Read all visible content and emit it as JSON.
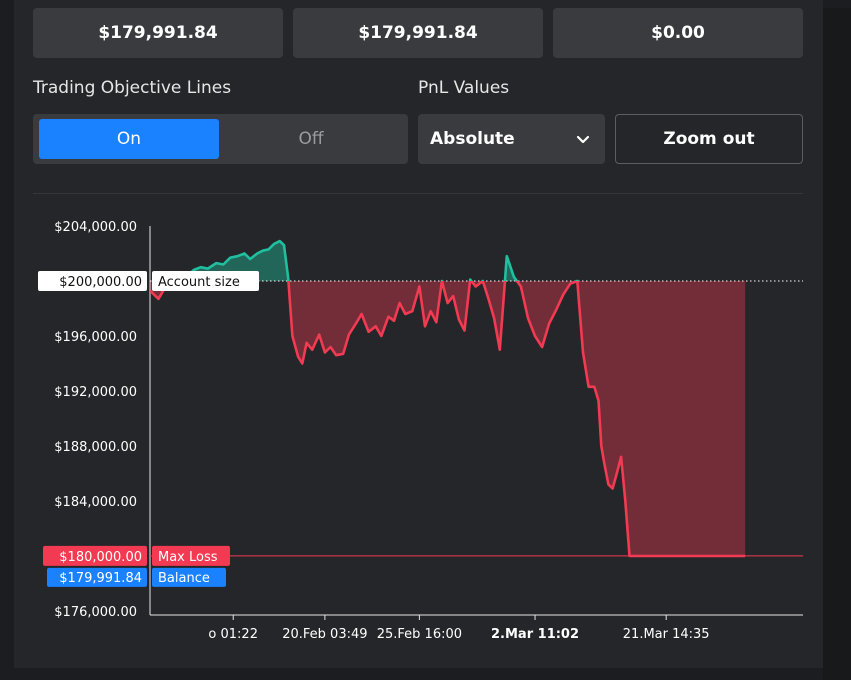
{
  "stats": {
    "box1": "$179,991.84",
    "box2": "$179,991.84",
    "box3": "$0.00"
  },
  "controls": {
    "objective_label": "Trading Objective Lines",
    "on_label": "On",
    "off_label": "Off",
    "pnl_label": "PnL Values",
    "pnl_selected": "Absolute",
    "zoom_label": "Zoom out"
  },
  "colors": {
    "accent": "#1a82ff",
    "profit": "#1fbfa0",
    "loss": "#f23a52",
    "panel": "#252629"
  },
  "chart_data": {
    "type": "area",
    "x_tick_labels": [
      "o 01:22",
      "20.Feb 03:49",
      "25.Feb 16:00",
      "2.Mar 11:02",
      "21.Mar 14:35"
    ],
    "y_tick_labels": [
      "$204,000.00",
      "$196,000.00",
      "$192,000.00",
      "$188,000.00",
      "$184,000.00",
      "$176,000.00"
    ],
    "ylim": [
      175700,
      204000
    ],
    "baseline": 200000,
    "grid": false,
    "reference_lines": [
      {
        "value_label": "$200,000.00",
        "name": "Account size",
        "value": 200000,
        "style": "dotted"
      },
      {
        "value_label": "$180,000.00",
        "name": "Max Loss",
        "value": 180000,
        "style": "solid"
      },
      {
        "value_label": "$179,991.84",
        "name": "Balance",
        "value": 179991.84,
        "style": "label"
      }
    ],
    "series": [
      {
        "x": [
          0,
          0.6,
          1.0,
          1.6,
          2.1,
          2.6,
          3.1,
          3.6,
          4.1,
          4.7,
          5.2,
          5.7,
          6.2,
          6.7,
          7.1,
          7.6,
          8.0,
          8.4,
          8.8,
          9.2,
          9.5,
          9.8,
          10.1,
          10.5,
          10.8,
          11.1,
          11.5,
          12.0,
          12.4,
          12.8,
          13.2,
          13.7,
          14.1,
          14.6,
          15.0,
          15.5,
          16.0,
          16.4,
          16.9,
          17.3,
          17.7,
          18.1,
          18.6,
          19.1,
          19.5,
          19.9,
          20.3,
          20.7,
          21.1,
          21.5,
          21.9,
          22.3,
          22.7,
          23.1,
          23.6,
          24.0,
          24.4,
          24.8,
          25.3,
          25.8,
          26.3,
          26.8,
          27.3,
          27.8,
          28.3,
          28.8,
          29.3,
          29.8,
          30.3,
          30.7,
          31.1,
          31.5,
          31.8,
          32.0,
          32.2,
          32.5,
          32.8,
          33.1,
          33.4,
          33.7,
          34.0,
          34.3,
          34.6,
          34.9,
          35.2,
          35.6,
          36.0,
          36.3,
          36.7,
          37.0,
          37.3,
          37.5,
          37.7,
          37.9,
          38.1,
          38.4,
          38.7,
          39.0,
          39.4,
          39.8,
          40.2,
          40.6,
          41.0,
          41.4,
          41.8,
          42.2
        ],
        "y": [
          199300,
          198700,
          199400,
          199800,
          200000,
          200300,
          200800,
          201000,
          200900,
          201300,
          201200,
          201700,
          201800,
          202000,
          201600,
          202000,
          202200,
          202300,
          202700,
          202900,
          202600,
          200200,
          196000,
          194500,
          194000,
          195500,
          195000,
          196100,
          194800,
          195200,
          194600,
          194700,
          196100,
          196900,
          197600,
          196300,
          196700,
          196000,
          197400,
          197100,
          198400,
          197600,
          197800,
          199600,
          196700,
          197800,
          197000,
          200000,
          198400,
          198900,
          197200,
          196400,
          200100,
          199600,
          200000,
          198700,
          197300,
          195000,
          201800,
          200300,
          199600,
          197300,
          196000,
          195200,
          196900,
          197900,
          199000,
          199800,
          200000,
          194800,
          192300,
          192300,
          191300,
          188000,
          186800,
          185200,
          184900,
          186000,
          187200,
          184000,
          180000,
          179992,
          179992,
          179992,
          179992,
          179992,
          179992,
          179992,
          179992,
          179992,
          179992,
          179992,
          179992,
          179992,
          179992,
          179992,
          179992,
          179992,
          179992,
          179992,
          179992,
          179992,
          179992,
          179992,
          179992,
          179992
        ]
      }
    ]
  }
}
